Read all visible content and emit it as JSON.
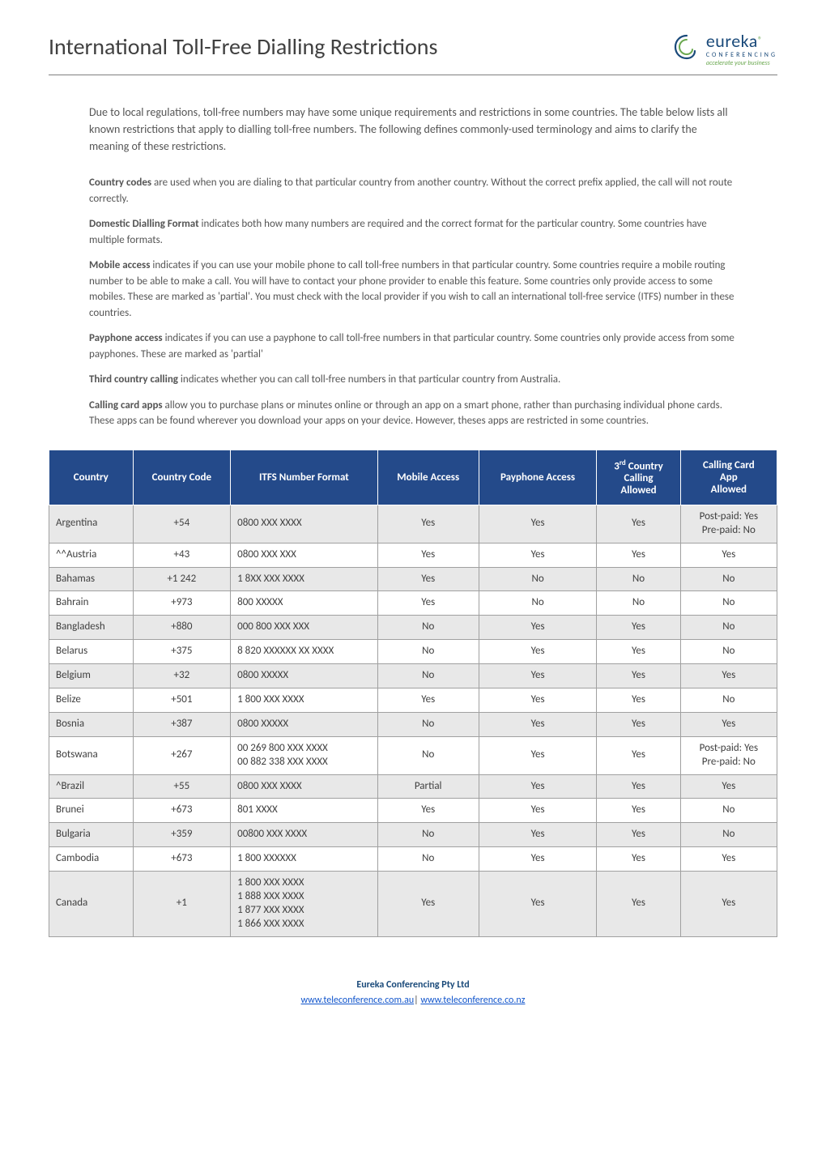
{
  "header": {
    "title": "International Toll-Free Dialling Restrictions",
    "logo": {
      "brand": "eureka",
      "registered": "®",
      "subtitle": "CONFERENCING",
      "tagline": "accelerate your business"
    }
  },
  "intro": "Due to local regulations, toll-free numbers may have some unique requirements and restrictions in some countries. The table below lists all known restrictions that apply to dialling toll-free numbers. The following defines commonly-used terminology and aims to clarify the meaning of these restrictions.",
  "definitions": [
    {
      "term": "Country codes",
      "text": " are used when you are dialing to that particular country from another country. Without the correct prefix applied, the call will not route correctly."
    },
    {
      "term": "Domestic Dialling Format",
      "text": " indicates both how many numbers are required and the correct format for the particular country. Some countries have multiple formats."
    },
    {
      "term": "Mobile access",
      "text": " indicates if you can use your mobile phone to call toll-free numbers in that particular country. Some countries require a mobile routing number to be able to make a call. You will have to contact your phone provider to enable this feature. Some countries only provide access to some mobiles. These are marked as 'partial'. You must check with the local provider if you wish to call an international toll-free service (ITFS) number in these countries."
    },
    {
      "term": "Payphone access",
      "text": " indicates if you can use a payphone to call toll-free numbers in that particular country. Some countries only provide access from some payphones. These are marked as 'partial'"
    },
    {
      "term": "Third country calling",
      "text": " indicates whether you can call toll-free numbers in that particular country from Australia."
    },
    {
      "term": "Calling card apps",
      "text": " allow you to purchase plans or minutes online or through an app on a smart phone, rather than purchasing individual phone cards. These apps can be found wherever you download your apps on your device. However, theses apps are restricted in some countries."
    }
  ],
  "table": {
    "columns": [
      "Country",
      "Country Code",
      "ITFS Number Format",
      "Mobile Access",
      "Payphone Access",
      "3rd Country Calling Allowed",
      "Calling Card App Allowed"
    ],
    "header_bg": "#244a8a",
    "header_color": "#ffffff",
    "row_shade_bg": "#e8e8e8",
    "row_noshade_bg": "#ffffff",
    "border_color": "#a0a0a0",
    "rows": [
      {
        "shade": true,
        "cells": [
          "Argentina",
          "+54",
          "0800 XXX XXXX",
          "Yes",
          "Yes",
          "Yes",
          "Post-paid: Yes\nPre-paid: No"
        ]
      },
      {
        "shade": false,
        "cells": [
          "^^Austria",
          "+43",
          "0800 XXX XXX",
          "Yes",
          "Yes",
          "Yes",
          "Yes"
        ]
      },
      {
        "shade": true,
        "cells": [
          "Bahamas",
          "+1 242",
          "1 8XX XXX XXXX",
          "Yes",
          "No",
          "No",
          "No"
        ]
      },
      {
        "shade": false,
        "cells": [
          "Bahrain",
          "+973",
          "800 XXXXX",
          "Yes",
          "No",
          "No",
          "No"
        ]
      },
      {
        "shade": true,
        "cells": [
          "Bangladesh",
          "+880",
          "000 800 XXX XXX",
          "No",
          "Yes",
          "Yes",
          "No"
        ]
      },
      {
        "shade": false,
        "cells": [
          "Belarus",
          "+375",
          "8 820 XXXXXX XX XXXX",
          "No",
          "Yes",
          "Yes",
          "No"
        ]
      },
      {
        "shade": true,
        "cells": [
          "Belgium",
          "+32",
          "0800 XXXXX",
          "No",
          "Yes",
          "Yes",
          "Yes"
        ]
      },
      {
        "shade": false,
        "cells": [
          "Belize",
          "+501",
          "1 800 XXX XXXX",
          "Yes",
          "Yes",
          "Yes",
          "No"
        ]
      },
      {
        "shade": true,
        "cells": [
          "Bosnia",
          "+387",
          "0800 XXXXX",
          "No",
          "Yes",
          "Yes",
          "Yes"
        ]
      },
      {
        "shade": false,
        "cells": [
          "Botswana",
          "+267",
          "00 269 800 XXX XXXX\n00 882 338 XXX XXXX",
          "No",
          "Yes",
          "Yes",
          "Post-paid: Yes\nPre-paid: No"
        ]
      },
      {
        "shade": true,
        "cells": [
          "^Brazil",
          "+55",
          "0800 XXX XXXX",
          "Partial",
          "Yes",
          "Yes",
          "Yes"
        ]
      },
      {
        "shade": false,
        "cells": [
          "Brunei",
          "+673",
          "801 XXXX",
          "Yes",
          "Yes",
          "Yes",
          "No"
        ]
      },
      {
        "shade": true,
        "cells": [
          "Bulgaria",
          "+359",
          "00800 XXX XXXX",
          "No",
          "Yes",
          "Yes",
          "No"
        ]
      },
      {
        "shade": false,
        "cells": [
          "Cambodia",
          "+673",
          "1 800 XXXXXX",
          "No",
          "Yes",
          "Yes",
          "Yes"
        ]
      },
      {
        "shade": true,
        "cells": [
          "Canada",
          "+1",
          "1 800 XXX XXXX\n1 888 XXX XXXX\n1 877 XXX XXXX\n1 866 XXX XXXX",
          "Yes",
          "Yes",
          "Yes",
          "Yes"
        ]
      }
    ]
  },
  "footer": {
    "company": "Eureka Conferencing Pty Ltd",
    "link1_text": "www.teleconference.com.au",
    "link2_text": "www.teleconference.co.nz",
    "separator": "| "
  },
  "colors": {
    "brand_blue": "#1a4a7a",
    "brand_green": "#6aa84f",
    "text": "#404040",
    "link": "#1155cc"
  }
}
